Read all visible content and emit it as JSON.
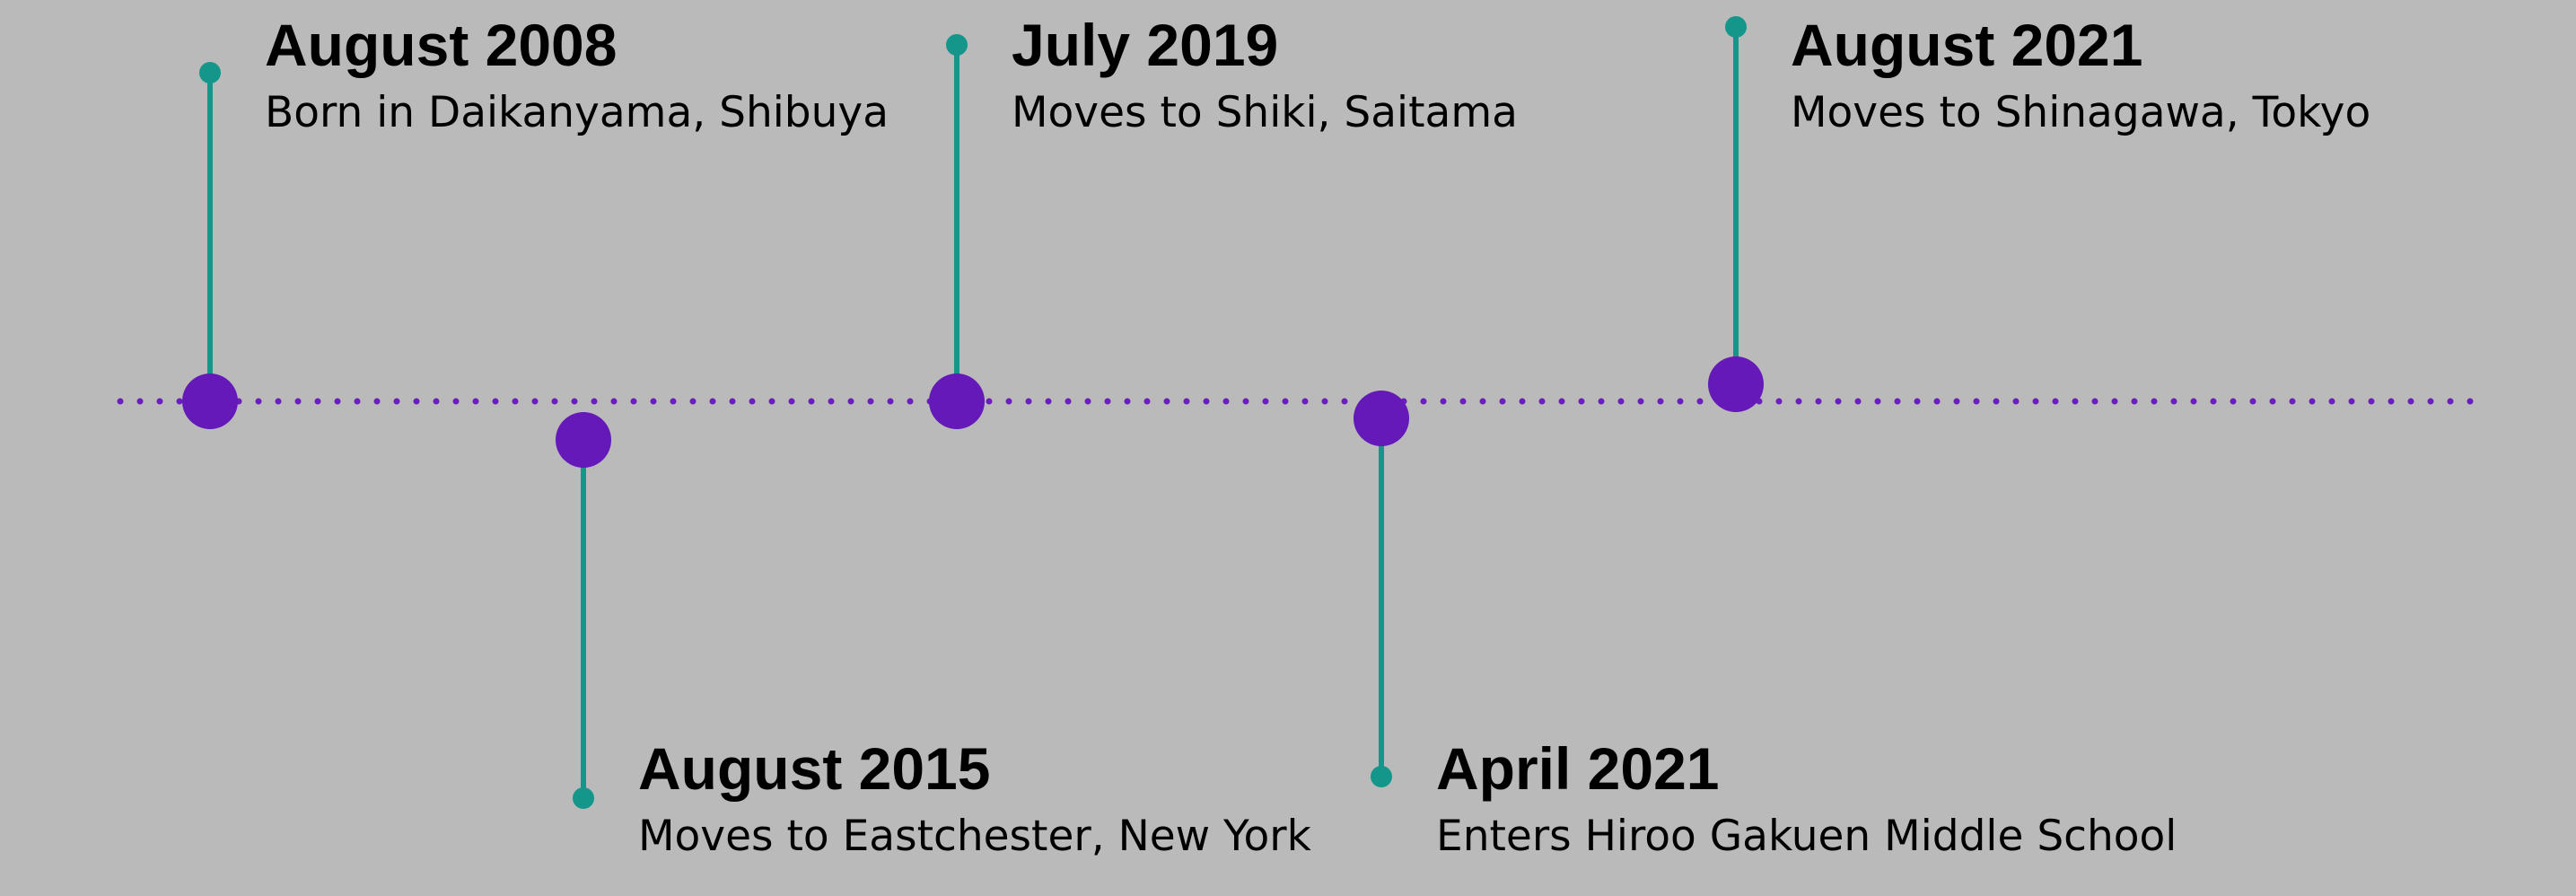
{
  "colors": {
    "background": "#bababa",
    "axis_dots": "#6a1fbb",
    "node": "#6419b8",
    "stem": "#14968a",
    "text": "#000000"
  },
  "events": [
    {
      "date": "August 2008",
      "description": "Born in Daikanyama, Shibuya",
      "side": "above"
    },
    {
      "date": "August 2015",
      "description": "Moves to Eastchester, New York",
      "side": "below"
    },
    {
      "date": "July 2019",
      "description": "Moves to Shiki, Saitama",
      "side": "above"
    },
    {
      "date": "April 2021",
      "description": "Enters Hiroo Gakuen Middle School",
      "side": "below"
    },
    {
      "date": "August 2021",
      "description": "Moves to Shinagawa, Tokyo",
      "side": "above"
    }
  ]
}
